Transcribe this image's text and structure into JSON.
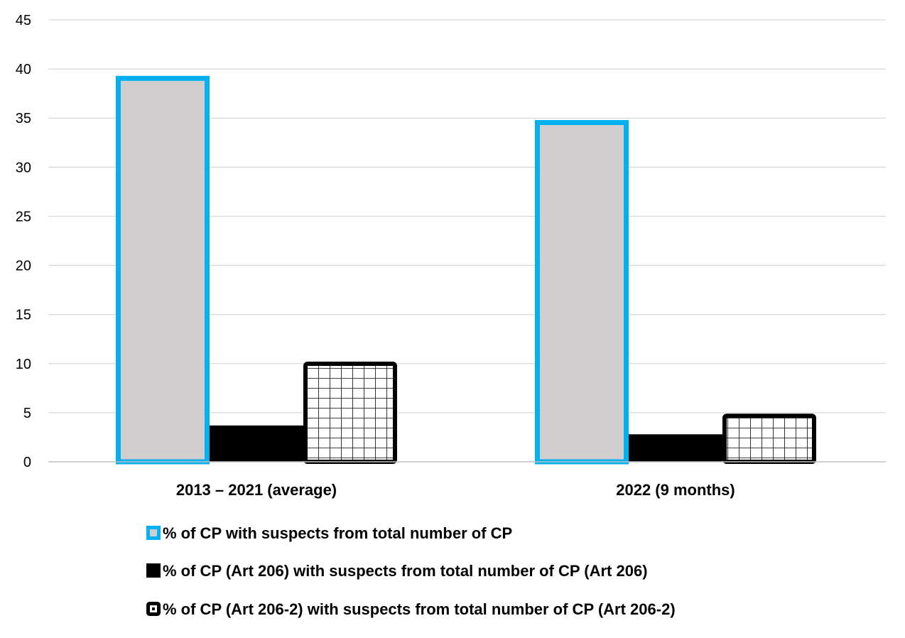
{
  "chart_data": {
    "type": "bar",
    "title": "",
    "xlabel": "",
    "ylabel": "",
    "ylim": [
      0,
      45
    ],
    "yticks": [
      0,
      5,
      10,
      15,
      20,
      25,
      30,
      35,
      40,
      45
    ],
    "ytick_labels": [
      "0",
      "5",
      "10",
      "15",
      "20",
      "25",
      "30",
      "35",
      "40",
      "45"
    ],
    "grid": true,
    "legend_position": "bottom",
    "categories": [
      "2013 – 2021 (average)",
      "2022 (9 months)"
    ],
    "series": [
      {
        "name": "% of CP with suspects from total number of CP",
        "values": [
          39.3,
          34.8
        ],
        "fill": "#d0cece",
        "stroke": "#00b0f0",
        "pattern": "solid-outlined"
      },
      {
        "name": "% of CP (Art 206) with suspects from total number of CP (Art 206)",
        "values": [
          3.7,
          2.8
        ],
        "fill": "#000000",
        "stroke": "#000000",
        "pattern": "solid"
      },
      {
        "name": "% of CP (Art 206-2) with suspects from total number of CP (Art 206-2)",
        "values": [
          10.2,
          4.9
        ],
        "fill": "#ffffff",
        "stroke": "#000000",
        "pattern": "grid"
      }
    ]
  },
  "colors": {
    "gridline": "#d9d9d9",
    "axis": "#bfbfbf",
    "text": "#000000"
  }
}
